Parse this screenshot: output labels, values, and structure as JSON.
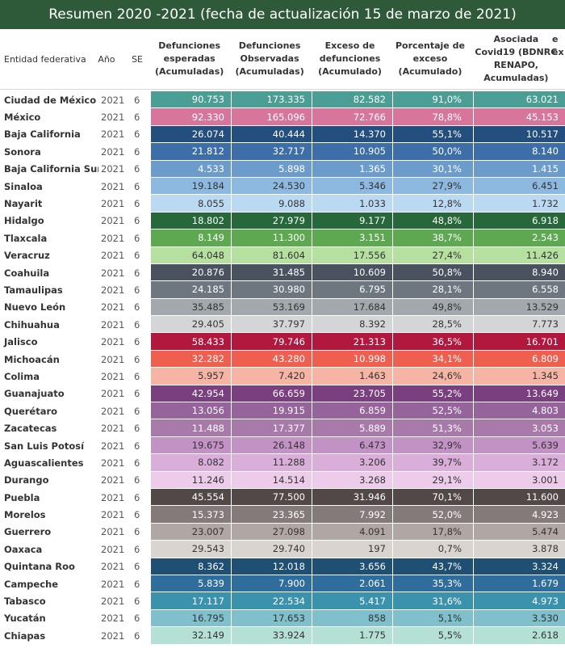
{
  "title": "Resumen 2020 -2021 (fecha de actualización 15 de marzo de 2021)",
  "columns": {
    "entidad": "Entidad federativa",
    "ano": "Año",
    "se": "SE",
    "esperadas": [
      "Defunciones",
      "esperadas",
      "(Acumuladas)"
    ],
    "observadas": [
      "Defunciones",
      "Observadas",
      "(Acumuladas)"
    ],
    "exceso": [
      "Exceso de",
      "defunciones",
      "(Acumulado)"
    ],
    "porcentaje": [
      "Porcentaje de",
      "exceso",
      "(Acumulado)"
    ],
    "asociada": [
      "Asociada",
      "Covid19 (BDNRC",
      "RENAPO,",
      "Acumuladas)"
    ],
    "asociada_cut_a": "e",
    "asociada_cut_b": "ex"
  },
  "chart_data": {
    "type": "table",
    "title": "Resumen 2020 -2021 (fecha de actualización 15 de marzo de 2021)",
    "rows": [
      {
        "entidad": "Ciudad de México",
        "ano": "2021",
        "se": "6",
        "esperadas": "90.753",
        "observadas": "173.335",
        "exceso": "82.582",
        "porcentaje": "91,0%",
        "asociada": "63.021",
        "color": "#4a9e94",
        "text_color": "#ffffff"
      },
      {
        "entidad": "México",
        "ano": "2021",
        "se": "6",
        "esperadas": "92.330",
        "observadas": "165.096",
        "exceso": "72.766",
        "porcentaje": "78,8%",
        "asociada": "45.153",
        "color": "#d7769a",
        "text_color": "#ffffff"
      },
      {
        "entidad": "Baja California",
        "ano": "2021",
        "se": "6",
        "esperadas": "26.074",
        "observadas": "40.444",
        "exceso": "14.370",
        "porcentaje": "55,1%",
        "asociada": "10.517",
        "color": "#244e7e",
        "text_color": "#ffffff"
      },
      {
        "entidad": "Sonora",
        "ano": "2021",
        "se": "6",
        "esperadas": "21.812",
        "observadas": "32.717",
        "exceso": "10.905",
        "porcentaje": "50,0%",
        "asociada": "8.140",
        "color": "#3d6ea8",
        "text_color": "#ffffff"
      },
      {
        "entidad": "Baja California Sur",
        "ano": "2021",
        "se": "6",
        "esperadas": "4.533",
        "observadas": "5.898",
        "exceso": "1.365",
        "porcentaje": "30,1%",
        "asociada": "1.415",
        "color": "#6c9ccc",
        "text_color": "#ffffff"
      },
      {
        "entidad": "Sinaloa",
        "ano": "2021",
        "se": "6",
        "esperadas": "19.184",
        "observadas": "24.530",
        "exceso": "5.346",
        "porcentaje": "27,9%",
        "asociada": "6.451",
        "color": "#8db9e0",
        "text_color": "#333333"
      },
      {
        "entidad": "Nayarit",
        "ano": "2021",
        "se": "6",
        "esperadas": "8.055",
        "observadas": "9.088",
        "exceso": "1.033",
        "porcentaje": "12,8%",
        "asociada": "1.732",
        "color": "#bcd9f2",
        "text_color": "#333333"
      },
      {
        "entidad": "Hidalgo",
        "ano": "2021",
        "se": "6",
        "esperadas": "18.802",
        "observadas": "27.979",
        "exceso": "9.177",
        "porcentaje": "48,8%",
        "asociada": "6.918",
        "color": "#27683b",
        "text_color": "#ffffff"
      },
      {
        "entidad": "Tlaxcala",
        "ano": "2021",
        "se": "6",
        "esperadas": "8.149",
        "observadas": "11.300",
        "exceso": "3.151",
        "porcentaje": "38,7%",
        "asociada": "2.543",
        "color": "#5ea852",
        "text_color": "#ffffff"
      },
      {
        "entidad": "Veracruz",
        "ano": "2021",
        "se": "6",
        "esperadas": "64.048",
        "observadas": "81.604",
        "exceso": "17.556",
        "porcentaje": "27,4%",
        "asociada": "11.426",
        "color": "#b5e0a0",
        "text_color": "#333333"
      },
      {
        "entidad": "Coahuila",
        "ano": "2021",
        "se": "6",
        "esperadas": "20.876",
        "observadas": "31.485",
        "exceso": "10.609",
        "porcentaje": "50,8%",
        "asociada": "8.940",
        "color": "#4a5260",
        "text_color": "#ffffff"
      },
      {
        "entidad": "Tamaulipas",
        "ano": "2021",
        "se": "6",
        "esperadas": "24.185",
        "observadas": "30.980",
        "exceso": "6.795",
        "porcentaje": "28,1%",
        "asociada": "6.558",
        "color": "#6e767f",
        "text_color": "#ffffff"
      },
      {
        "entidad": "Nuevo León",
        "ano": "2021",
        "se": "6",
        "esperadas": "35.485",
        "observadas": "53.169",
        "exceso": "17.684",
        "porcentaje": "49,8%",
        "asociada": "13.529",
        "color": "#a3a8ad",
        "text_color": "#333333"
      },
      {
        "entidad": "Chihuahua",
        "ano": "2021",
        "se": "6",
        "esperadas": "29.405",
        "observadas": "37.797",
        "exceso": "8.392",
        "porcentaje": "28,5%",
        "asociada": "7.773",
        "color": "#d3d5d7",
        "text_color": "#333333"
      },
      {
        "entidad": "Jalisco",
        "ano": "2021",
        "se": "6",
        "esperadas": "58.433",
        "observadas": "79.746",
        "exceso": "21.313",
        "porcentaje": "36,5%",
        "asociada": "16.701",
        "color": "#b2173e",
        "text_color": "#ffffff"
      },
      {
        "entidad": "Michoacán",
        "ano": "2021",
        "se": "6",
        "esperadas": "32.282",
        "observadas": "43.280",
        "exceso": "10.998",
        "porcentaje": "34,1%",
        "asociada": "6.809",
        "color": "#ee5f50",
        "text_color": "#ffffff"
      },
      {
        "entidad": "Colima",
        "ano": "2021",
        "se": "6",
        "esperadas": "5.957",
        "observadas": "7.420",
        "exceso": "1.463",
        "porcentaje": "24,6%",
        "asociada": "1.345",
        "color": "#f6b4a5",
        "text_color": "#333333"
      },
      {
        "entidad": "Guanajuato",
        "ano": "2021",
        "se": "6",
        "esperadas": "42.954",
        "observadas": "66.659",
        "exceso": "23.705",
        "porcentaje": "55,2%",
        "asociada": "13.649",
        "color": "#7a3f7e",
        "text_color": "#ffffff"
      },
      {
        "entidad": "Querétaro",
        "ano": "2021",
        "se": "6",
        "esperadas": "13.056",
        "observadas": "19.915",
        "exceso": "6.859",
        "porcentaje": "52,5%",
        "asociada": "4.803",
        "color": "#95649a",
        "text_color": "#ffffff"
      },
      {
        "entidad": "Zacatecas",
        "ano": "2021",
        "se": "6",
        "esperadas": "11.488",
        "observadas": "17.377",
        "exceso": "5.889",
        "porcentaje": "51,3%",
        "asociada": "3.053",
        "color": "#a87aaa",
        "text_color": "#ffffff"
      },
      {
        "entidad": "San Luis Potosí",
        "ano": "2021",
        "se": "6",
        "esperadas": "19.675",
        "observadas": "26.148",
        "exceso": "6.473",
        "porcentaje": "32,9%",
        "asociada": "5.639",
        "color": "#c392c4",
        "text_color": "#333333"
      },
      {
        "entidad": "Aguascalientes",
        "ano": "2021",
        "se": "6",
        "esperadas": "8.082",
        "observadas": "11.288",
        "exceso": "3.206",
        "porcentaje": "39,7%",
        "asociada": "3.172",
        "color": "#d9aed8",
        "text_color": "#333333"
      },
      {
        "entidad": "Durango",
        "ano": "2021",
        "se": "6",
        "esperadas": "11.246",
        "observadas": "14.514",
        "exceso": "3.268",
        "porcentaje": "29,1%",
        "asociada": "3.001",
        "color": "#ecccea",
        "text_color": "#333333"
      },
      {
        "entidad": "Puebla",
        "ano": "2021",
        "se": "6",
        "esperadas": "45.554",
        "observadas": "77.500",
        "exceso": "31.946",
        "porcentaje": "70,1%",
        "asociada": "11.600",
        "color": "#534848",
        "text_color": "#ffffff"
      },
      {
        "entidad": "Morelos",
        "ano": "2021",
        "se": "6",
        "esperadas": "15.373",
        "observadas": "23.365",
        "exceso": "7.992",
        "porcentaje": "52,0%",
        "asociada": "4.923",
        "color": "#847a7a",
        "text_color": "#ffffff"
      },
      {
        "entidad": "Guerrero",
        "ano": "2021",
        "se": "6",
        "esperadas": "23.007",
        "observadas": "27.098",
        "exceso": "4.091",
        "porcentaje": "17,8%",
        "asociada": "5.474",
        "color": "#b0a6a4",
        "text_color": "#333333"
      },
      {
        "entidad": "Oaxaca",
        "ano": "2021",
        "se": "6",
        "esperadas": "29.543",
        "observadas": "29.740",
        "exceso": "197",
        "porcentaje": "0,7%",
        "asociada": "3.878",
        "color": "#dad4d1",
        "text_color": "#333333"
      },
      {
        "entidad": "Quintana Roo",
        "ano": "2021",
        "se": "6",
        "esperadas": "8.362",
        "observadas": "12.018",
        "exceso": "3.656",
        "porcentaje": "43,7%",
        "asociada": "3.324",
        "color": "#1f4f72",
        "text_color": "#ffffff"
      },
      {
        "entidad": "Campeche",
        "ano": "2021",
        "se": "6",
        "esperadas": "5.839",
        "observadas": "7.900",
        "exceso": "2.061",
        "porcentaje": "35,3%",
        "asociada": "1.679",
        "color": "#2e6d9c",
        "text_color": "#ffffff"
      },
      {
        "entidad": "Tabasco",
        "ano": "2021",
        "se": "6",
        "esperadas": "17.117",
        "observadas": "22.534",
        "exceso": "5.417",
        "porcentaje": "31,6%",
        "asociada": "4.973",
        "color": "#3a92ac",
        "text_color": "#ffffff"
      },
      {
        "entidad": "Yucatán",
        "ano": "2021",
        "se": "6",
        "esperadas": "16.795",
        "observadas": "17.653",
        "exceso": "858",
        "porcentaje": "5,1%",
        "asociada": "3.530",
        "color": "#7fc0cc",
        "text_color": "#333333"
      },
      {
        "entidad": "Chiapas",
        "ano": "2021",
        "se": "6",
        "esperadas": "32.149",
        "observadas": "33.924",
        "exceso": "1.775",
        "porcentaje": "5,5%",
        "asociada": "2.618",
        "color": "#b5e0d5",
        "text_color": "#333333"
      }
    ]
  }
}
